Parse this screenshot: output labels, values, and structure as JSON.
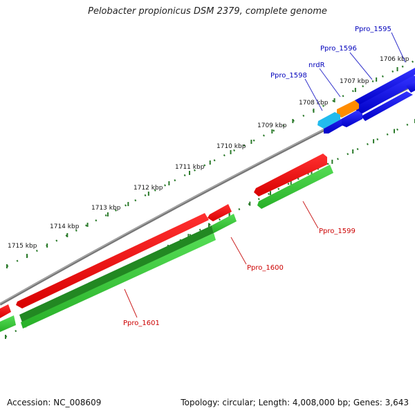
{
  "title": "Pelobacter propionicus DSM 2379, complete genome",
  "accession": "Accession: NC_008609",
  "summary": "Topology: circular; Length: 4,008,000 bp; Genes: 3,643",
  "colors": {
    "backbone": "#7a7a7a",
    "forward_gene": "#0000e0",
    "forward_rna_cyan": "#22bbee",
    "forward_orange": "#ff8c00",
    "reverse_gene": "#ee0000",
    "reverse_green": "#33cc33",
    "reverse_darkgreen": "#228822",
    "tick": "#2a7a2a",
    "forward_label": "#0000bb",
    "reverse_label": "#cc0000"
  },
  "scale_labels": [
    "1706 kbp",
    "1707 kbp",
    "1708 kbp",
    "1709 kbp",
    "1710 kbp",
    "1711 kbp",
    "1712 kbp",
    "1713 kbp",
    "1714 kbp",
    "1715 kbp"
  ],
  "forward_genes": [
    {
      "label": "Ppro_1595"
    },
    {
      "label": "Ppro_1596"
    },
    {
      "label": "nrdR"
    },
    {
      "label": "Ppro_1598"
    }
  ],
  "reverse_genes": [
    {
      "label": "Ppro_1599"
    },
    {
      "label": "Ppro_1600"
    },
    {
      "label": "Ppro_1601"
    }
  ]
}
